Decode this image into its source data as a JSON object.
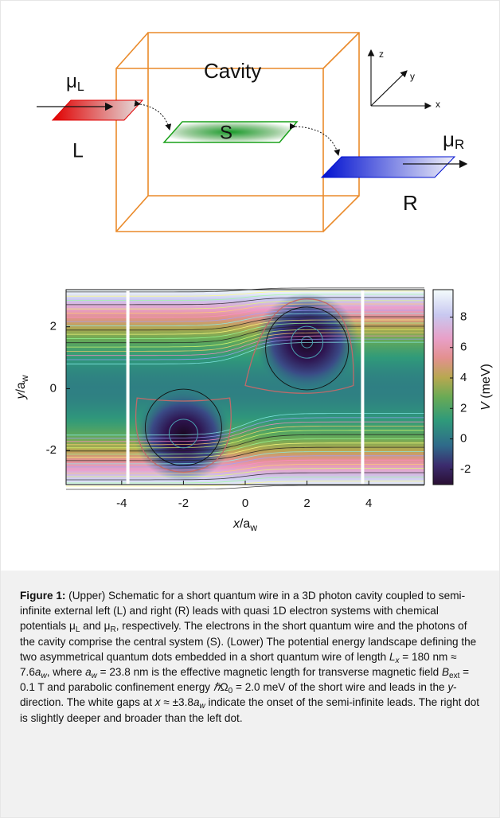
{
  "schematic": {
    "cavity": "Cavity",
    "mu_left": "μ",
    "mu_left_sub": "L",
    "left": "L",
    "system": "S",
    "mu_right": "μ",
    "mu_right_sub": "R",
    "right": "R",
    "axis_z": "z",
    "axis_y": "y",
    "axis_x": "x"
  },
  "chart_data": {
    "type": "contour",
    "xlabel": {
      "var": "x",
      "unit": "/a",
      "sub": "w"
    },
    "ylabel": {
      "var": "y",
      "unit": "/a",
      "sub": "w"
    },
    "xlim": [
      -5.8,
      5.8
    ],
    "xticks": [
      -4,
      -2,
      0,
      2,
      4
    ],
    "ylim": [
      -3.1,
      3.2
    ],
    "yticks": [
      -2,
      0,
      2
    ],
    "lead_gaps": [
      -3.8,
      3.8
    ],
    "colorbar": {
      "label": {
        "var": "V",
        "unit": " (meV)"
      },
      "lim": [
        -3,
        9.8
      ],
      "ticks": [
        -2,
        0,
        2,
        4,
        6,
        8
      ]
    }
  },
  "caption": {
    "segments": [
      {
        "text": "Figure 1:",
        "kind": "b"
      },
      {
        "text": " (Upper) Schematic for a short quantum wire in a 3D photon cavity coupled to semi-infinite external left (L) and right (R) leads with quasi 1D electron systems with chemical potentials μ",
        "kind": "n"
      },
      {
        "text": "L",
        "kind": "sub"
      },
      {
        "text": " and μ",
        "kind": "n"
      },
      {
        "text": "R",
        "kind": "sub"
      },
      {
        "text": ", respectively. The electrons in the short quantum wire and the photons of the cavity comprise the central system (S). (Lower) The potential energy landscape defining the two asymmetrical quantum dots embedded in a short quantum wire of length ",
        "kind": "n"
      },
      {
        "text": "L",
        "kind": "i"
      },
      {
        "text": "x",
        "kind": "isub"
      },
      {
        "text": " = 180 nm ≈ 7.6",
        "kind": "n"
      },
      {
        "text": "a",
        "kind": "i"
      },
      {
        "text": "w",
        "kind": "isub"
      },
      {
        "text": ", where ",
        "kind": "n"
      },
      {
        "text": "a",
        "kind": "i"
      },
      {
        "text": "w",
        "kind": "isub"
      },
      {
        "text": " = 23.8 nm is the effective magnetic length for transverse magnetic field ",
        "kind": "n"
      },
      {
        "text": "B",
        "kind": "i"
      },
      {
        "text": "ext",
        "kind": "sub"
      },
      {
        "text": " = 0.1 T and parabolic confinement energy ",
        "kind": "n"
      },
      {
        "text": "ℏ",
        "kind": "i"
      },
      {
        "text": "Ω",
        "kind": "n"
      },
      {
        "text": "0",
        "kind": "sub"
      },
      {
        "text": " = 2.0 meV of the short wire and leads in the ",
        "kind": "n"
      },
      {
        "text": "y",
        "kind": "i"
      },
      {
        "text": "-direction. The white gaps at ",
        "kind": "n"
      },
      {
        "text": "x",
        "kind": "i"
      },
      {
        "text": " ≈ ±3.8",
        "kind": "n"
      },
      {
        "text": "a",
        "kind": "i"
      },
      {
        "text": "w",
        "kind": "isub"
      },
      {
        "text": " indicate the onset of the semi-infinite leads. The right dot is slightly deeper and broader than the left dot.",
        "kind": "n"
      }
    ]
  }
}
